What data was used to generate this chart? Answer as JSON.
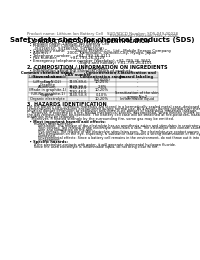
{
  "title": "Safety data sheet for chemical products (SDS)",
  "header_left": "Product name: Lithium Ion Battery Cell",
  "header_right_line1": "SUD/SDCD Number: SDS-049-00018",
  "header_right_line2": "Established / Revision: Dec.7.2016",
  "section1_title": "1. PRODUCT AND COMPANY IDENTIFICATION",
  "section1_lines": [
    "  • Product name: Lithium Ion Battery Cell",
    "  • Product code: Cylindrical-type cell",
    "      (94166550, 94186550, 94186550A)",
    "  • Company name:        Sanyo Electric Co., Ltd., Mobile Energy Company",
    "  • Address:              2001, Kamiosako, Sumoto-City, Hyogo, Japan",
    "  • Telephone number:    +81-799-26-4111",
    "  • Fax number:          +81-799-26-4129",
    "  • Emergency telephone number (Weekday) +81-799-26-3662",
    "                                         (Night and holiday) +81-799-26-4101"
  ],
  "section2_title": "2. COMPOSITION / INFORMATION ON INGREDIENTS",
  "section2_intro": "  • Substance or preparation: Preparation",
  "section2_sub": "  • Information about the chemical nature of product:",
  "table_headers": [
    "Common chemical name /\nSeveral name",
    "CAS number",
    "Concentration /\nConcentration range",
    "Classification and\nhazard labeling"
  ],
  "table_rows": [
    [
      "Lithium cobalt oxide\n(LiMnxCoyNiO2)",
      "-",
      "(30-60%)",
      "-"
    ],
    [
      "Iron\nAluminum",
      "7439-89-6\n7429-90-5",
      "10-25%\n2-8%",
      "-\n-"
    ],
    [
      "Graphite\n(Made in graphite-1)\n(UK-No graphite-1)",
      "7782-42-5\n7782-44-0",
      "10-20%",
      "-"
    ],
    [
      "Copper",
      "7440-50-8",
      "0-10%",
      "Sensitization of the skin\ngroup No.2"
    ],
    [
      "Organic electrolyte",
      "-",
      "10-20%",
      "Inflammable liquid"
    ]
  ],
  "table_row_heights": [
    5.5,
    6.5,
    8.0,
    5.5,
    4.5
  ],
  "section3_title": "3. HAZARDS IDENTIFICATION",
  "section3_para1": [
    "For the battery cell, chemical materials are stored in a hermetically sealed metal case, designed to withstand",
    "temperatures and pressures encountered during normal use. As a result, during normal use, there is no",
    "physical danger of ignition or explosion and there is no danger of hazardous materials leakage."
  ],
  "section3_para2": [
    "    However, if exposed to a fire, added mechanical shocks, decomposed, when electric shorts occur, they cause",
    "the gas release cannot be operated. The battery cell case will be breached at fire-potatoes, hazardous",
    "materials may be released."
  ],
  "section3_para3": [
    "    Moreover, if heated strongly by the surrounding fire, some gas may be emitted."
  ],
  "section3_hazard_title": "  • Most important hazard and effects:",
  "section3_hazard_human": "      Human health effects:",
  "section3_hazard_lines": [
    "          Inhalation: The release of the electrolyte has an anesthesia action and stimulates in respiratory tract.",
    "          Skin contact: The release of the electrolyte stimulates a skin. The electrolyte skin contact causes a",
    "          sore and stimulation on the skin.",
    "          Eye contact: The release of the electrolyte stimulates eyes. The electrolyte eye contact causes a sore",
    "          and stimulation on the eye. Especially, a substance that causes a strong inflammation of the eye is",
    "          contained.",
    "          Environmental effects: Since a battery cell remains in the environment, do not throw out it into the",
    "          environment."
  ],
  "section3_specific_title": "  • Specific hazards:",
  "section3_specific_lines": [
    "      If the electrolyte contacts with water, it will generate detrimental hydrogen fluoride.",
    "      Since the used electrolyte is inflammable liquid, do not bring close to fire."
  ],
  "bg_color": "#ffffff",
  "text_color": "#000000",
  "title_fontsize": 5.0,
  "header_fontsize": 2.8,
  "section_fontsize": 3.5,
  "body_fontsize": 2.8,
  "table_fontsize": 2.6,
  "table_header_fontsize": 2.7
}
